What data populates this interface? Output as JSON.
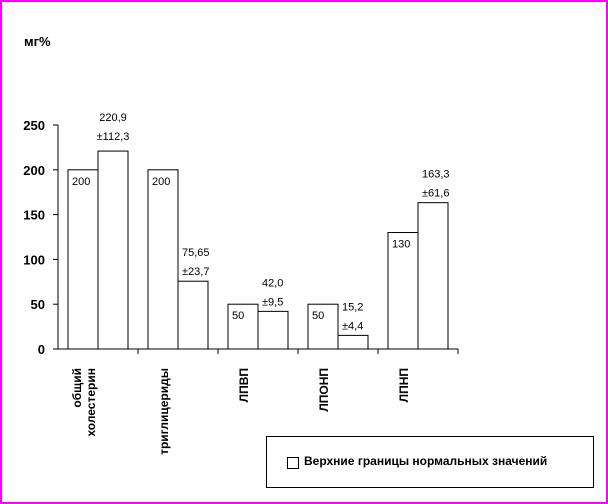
{
  "chart_data": {
    "type": "bar",
    "ylabel": "мг%",
    "ylim": [
      0,
      250
    ],
    "yticks": [
      0,
      50,
      100,
      150,
      200,
      250
    ],
    "categories": [
      [
        "общий",
        "холестерин"
      ],
      [
        "триглицериды"
      ],
      [
        "ЛПВП"
      ],
      [
        "ЛПОНП"
      ],
      [
        "ЛПНП"
      ]
    ],
    "series": [
      {
        "name": "Верхние границы нормальных значений",
        "values": [
          200,
          200,
          50,
          50,
          130
        ],
        "labels": [
          "200",
          "200",
          "50",
          "50",
          "130"
        ]
      },
      {
        "values": [
          220.9,
          75.65,
          42.0,
          15.2,
          163.3
        ],
        "labels": [
          [
            "220,9",
            "±112,3"
          ],
          [
            "75,65",
            "±23,7"
          ],
          [
            "42,0",
            "±9,5"
          ],
          [
            "15,2",
            "±4,4"
          ],
          [
            "163,3",
            "±61,6"
          ]
        ]
      }
    ],
    "grid": false,
    "legend": "bottom-right"
  },
  "colors": {
    "frame": "#ff00ff",
    "bar_fill": "#ffffff",
    "stroke": "#000000"
  }
}
